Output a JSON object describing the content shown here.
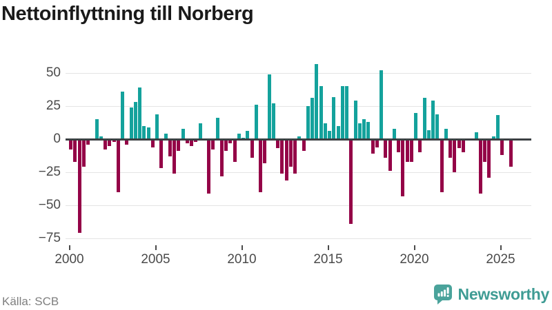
{
  "title": "Nettoinflyttning till Norberg",
  "source": "Källa: SCB",
  "brand": {
    "name": "Newsworthy"
  },
  "colors": {
    "positive_bar": "#14a29c",
    "negative_bar": "#940347",
    "zero_line": "#3c4043",
    "gridline": "#e4e4e4",
    "axis_text": "#4a4a4a",
    "title_text": "#1a1a1a",
    "source_text": "#7f7f7f",
    "brand_teal": "#3f9c94",
    "logo_bg": "#4aa39b"
  },
  "chart_data": {
    "type": "bar",
    "title": "Nettoinflyttning till Norberg",
    "frequency": "quarterly",
    "start_year": 2000,
    "start_quarter": 1,
    "x_tick_years": [
      2000,
      2005,
      2010,
      2015,
      2020,
      2025
    ],
    "y_tick_values": [
      50,
      25,
      0,
      -25,
      -50,
      -75
    ],
    "y_tick_labels": [
      "50",
      "25",
      "0",
      "−25",
      "−50",
      "−75"
    ],
    "ylim": [
      -80,
      62
    ],
    "grid": "horizontal",
    "legend": "none",
    "values": [
      -8,
      -17,
      -71,
      -21,
      -4,
      -1,
      15,
      2,
      -8,
      -5,
      -2,
      -40,
      36,
      -4,
      24,
      28,
      39,
      10,
      9,
      -6,
      19,
      -22,
      4,
      -13,
      -26,
      -9,
      8,
      -3,
      -5,
      -2,
      12,
      -1,
      -41,
      -8,
      16,
      -28,
      -9,
      -3,
      -17,
      4,
      1,
      6,
      -14,
      26,
      -40,
      -18,
      49,
      27,
      -7,
      -26,
      -31,
      -21,
      -26,
      2,
      -9,
      25,
      31,
      57,
      40,
      12,
      6,
      32,
      10,
      40,
      40,
      -64,
      29,
      12,
      15,
      13,
      -11,
      -6,
      52,
      -14,
      -24,
      8,
      -10,
      -43,
      -17,
      -17,
      20,
      -10,
      31,
      7,
      29,
      19,
      -40,
      8,
      -14,
      -25,
      -7,
      -10,
      0,
      0,
      5,
      -41,
      -17,
      -29,
      2,
      18,
      -12,
      -1,
      -21
    ]
  }
}
